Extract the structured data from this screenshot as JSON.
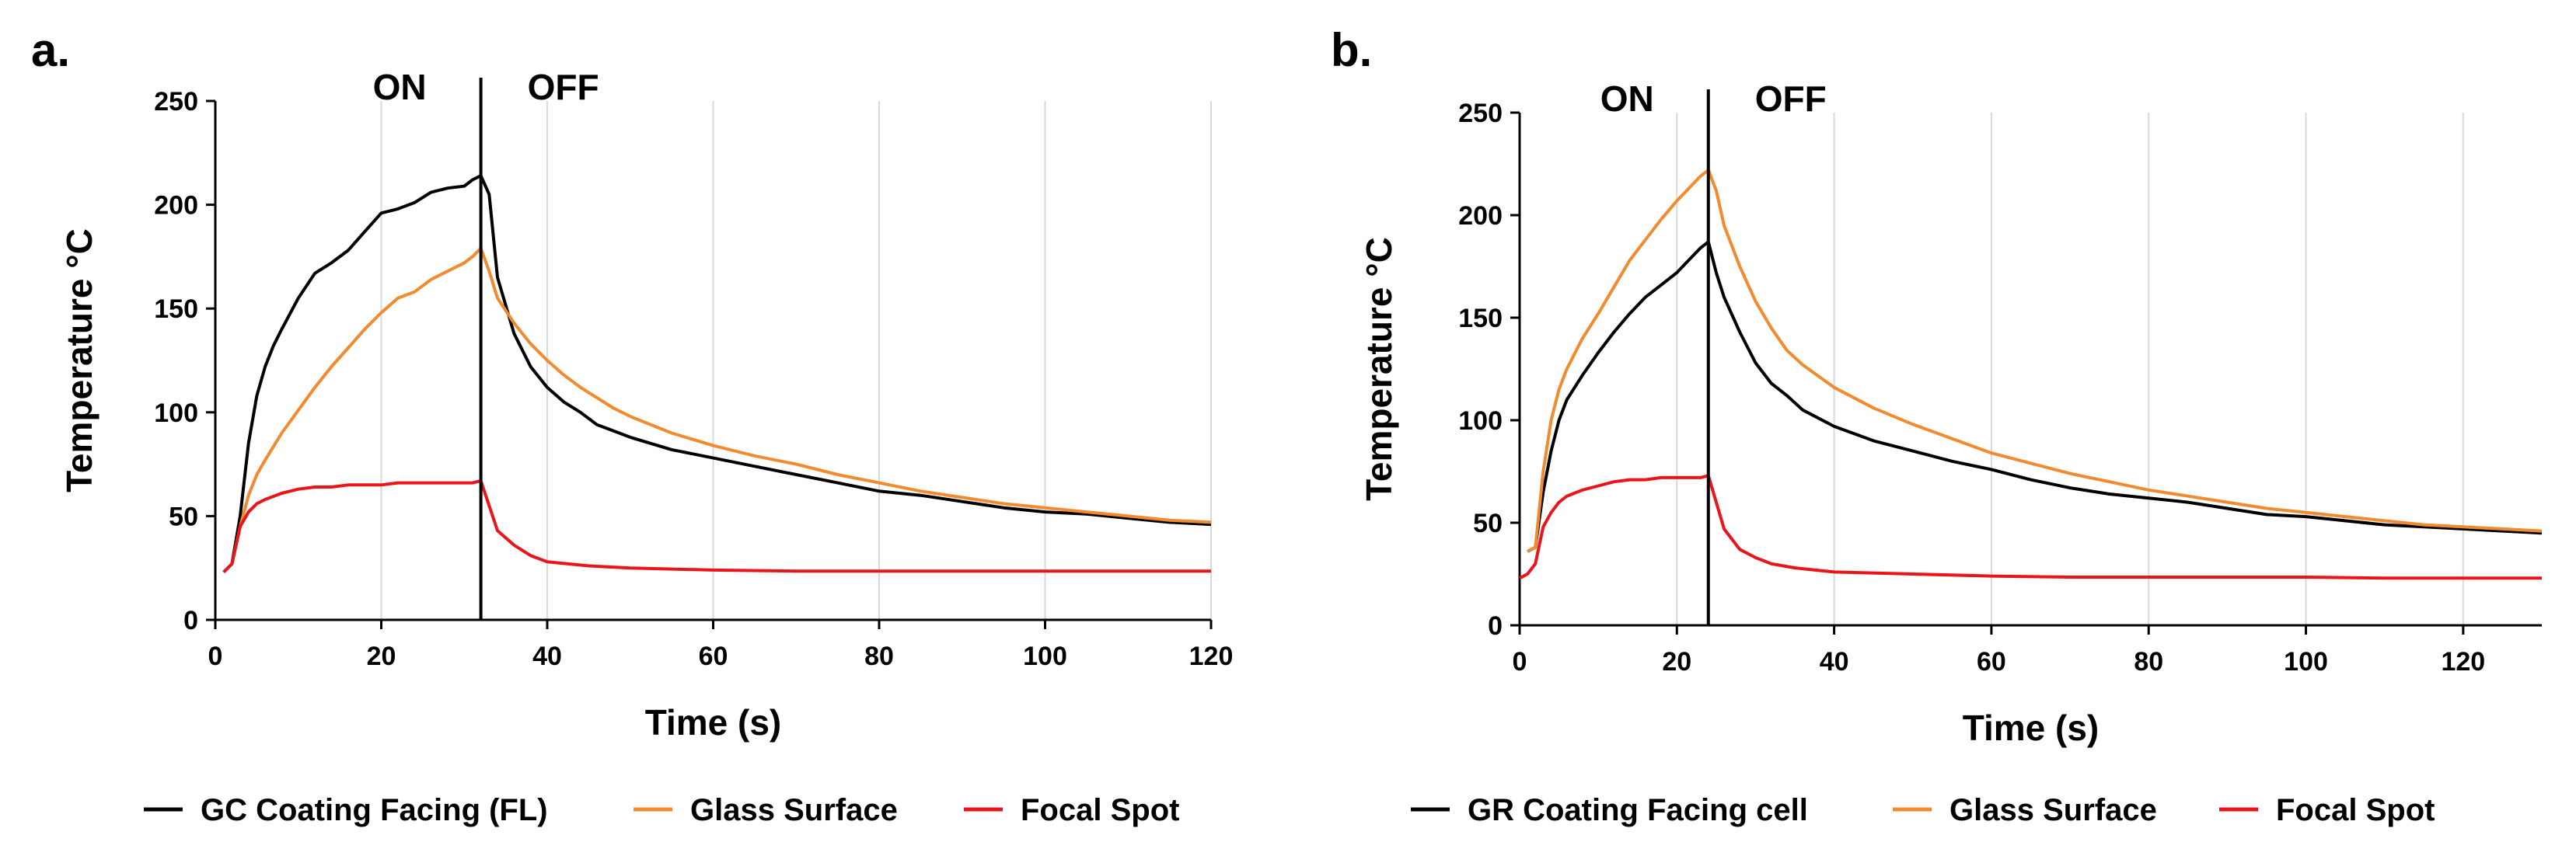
{
  "chart_data": [
    {
      "type": "line",
      "panel_label": "a.",
      "phase_labels": [
        "ON",
        "OFF"
      ],
      "switch_time": 32,
      "xlabel": "Time (s)",
      "ylabel": "Temperature °C",
      "xlim": [
        0,
        120
      ],
      "ylim": [
        0,
        250
      ],
      "xticks": [
        0,
        20,
        40,
        60,
        80,
        100,
        120
      ],
      "yticks": [
        0,
        50,
        100,
        150,
        200,
        250
      ],
      "vertical_gridlines": true,
      "legend_position": "bottom",
      "series": [
        {
          "name": "GC Coating Facing (FL)",
          "color": "#000000",
          "x": [
            1,
            2,
            3,
            4,
            5,
            6,
            7,
            8,
            10,
            12,
            14,
            16,
            18,
            20,
            22,
            24,
            26,
            28,
            30,
            31,
            32,
            33,
            34,
            36,
            38,
            40,
            42,
            44,
            46,
            48,
            50,
            55,
            60,
            65,
            70,
            75,
            80,
            85,
            90,
            95,
            100,
            105,
            110,
            115,
            120
          ],
          "y": [
            23,
            27,
            50,
            85,
            108,
            122,
            132,
            140,
            155,
            167,
            172,
            178,
            187,
            196,
            198,
            201,
            206,
            208,
            209,
            212,
            214,
            205,
            165,
            138,
            122,
            112,
            105,
            100,
            94,
            91,
            88,
            82,
            78,
            74,
            70,
            66,
            62,
            60,
            57,
            54,
            52,
            51,
            49,
            47,
            46
          ]
        },
        {
          "name": "Glass Surface",
          "color": "#F28A30",
          "x": [
            1,
            2,
            3,
            4,
            5,
            6,
            8,
            10,
            12,
            14,
            16,
            18,
            20,
            22,
            24,
            26,
            28,
            30,
            31,
            32,
            33,
            34,
            36,
            38,
            40,
            42,
            44,
            46,
            48,
            50,
            55,
            60,
            65,
            70,
            75,
            80,
            85,
            90,
            95,
            100,
            105,
            110,
            115,
            120
          ],
          "y": [
            23,
            27,
            45,
            60,
            70,
            77,
            90,
            101,
            112,
            122,
            131,
            140,
            148,
            155,
            158,
            164,
            168,
            172,
            175,
            179,
            168,
            155,
            143,
            133,
            125,
            118,
            112,
            107,
            102,
            98,
            90,
            84,
            79,
            75,
            70,
            66,
            62,
            59,
            56,
            54,
            52,
            50,
            48,
            47
          ]
        },
        {
          "name": "Focal Spot",
          "color": "#E8161B",
          "x": [
            1,
            2,
            3,
            4,
            5,
            6,
            8,
            10,
            12,
            14,
            16,
            18,
            20,
            22,
            24,
            26,
            28,
            30,
            31,
            32,
            33,
            34,
            36,
            38,
            40,
            45,
            50,
            60,
            70,
            80,
            90,
            100,
            110,
            120
          ],
          "y": [
            23,
            27,
            45,
            52,
            56,
            58,
            61,
            63,
            64,
            64,
            65,
            65,
            65,
            66,
            66,
            66,
            66,
            66,
            66,
            67,
            55,
            43,
            36,
            31,
            28,
            26,
            25,
            24,
            23.5,
            23.5,
            23.5,
            23.5,
            23.5,
            23.5
          ]
        }
      ]
    },
    {
      "type": "line",
      "panel_label": "b.",
      "phase_labels": [
        "ON",
        "OFF"
      ],
      "switch_time": 24,
      "xlabel": "Time (s)",
      "ylabel": "Temperature °C",
      "xlim": [
        0,
        130
      ],
      "ylim": [
        0,
        250
      ],
      "xticks": [
        0,
        20,
        40,
        60,
        80,
        100,
        120
      ],
      "yticks": [
        0,
        50,
        100,
        150,
        200,
        250
      ],
      "vertical_gridlines": true,
      "legend_position": "bottom",
      "series": [
        {
          "name": "GR Coating Facing cell",
          "color": "#000000",
          "x": [
            1,
            2,
            3,
            4,
            5,
            6,
            8,
            10,
            12,
            14,
            16,
            18,
            20,
            22,
            23,
            24,
            25,
            26,
            28,
            30,
            32,
            34,
            36,
            40,
            45,
            50,
            55,
            60,
            65,
            70,
            75,
            80,
            85,
            90,
            95,
            100,
            105,
            110,
            115,
            120,
            125,
            130
          ],
          "y": [
            36,
            38,
            65,
            85,
            100,
            110,
            122,
            133,
            143,
            152,
            160,
            166,
            172,
            180,
            184,
            187,
            172,
            160,
            143,
            128,
            118,
            112,
            105,
            97,
            90,
            85,
            80,
            76,
            71,
            67,
            64,
            62,
            60,
            57,
            54,
            53,
            51,
            49,
            48,
            47,
            46,
            45
          ]
        },
        {
          "name": "Glass Surface",
          "color": "#F28A30",
          "x": [
            1,
            2,
            3,
            4,
            5,
            6,
            8,
            10,
            12,
            14,
            16,
            18,
            20,
            22,
            23,
            24,
            25,
            26,
            28,
            30,
            32,
            34,
            36,
            40,
            45,
            50,
            55,
            60,
            65,
            70,
            75,
            80,
            85,
            90,
            95,
            100,
            105,
            110,
            115,
            120,
            125,
            130
          ],
          "y": [
            36,
            38,
            75,
            100,
            115,
            125,
            140,
            152,
            165,
            178,
            188,
            198,
            207,
            215,
            219,
            222,
            212,
            195,
            175,
            158,
            145,
            134,
            127,
            116,
            106,
            98,
            91,
            84,
            79,
            74,
            70,
            66,
            63,
            60,
            57,
            55,
            53,
            51,
            49,
            48,
            47,
            46
          ]
        },
        {
          "name": "Focal Spot",
          "color": "#E8161B",
          "x": [
            0,
            1,
            2,
            3,
            4,
            5,
            6,
            8,
            10,
            12,
            14,
            16,
            18,
            20,
            22,
            23,
            24,
            25,
            26,
            27,
            28,
            30,
            32,
            35,
            40,
            50,
            60,
            70,
            80,
            90,
            100,
            110,
            120,
            130
          ],
          "y": [
            23,
            25,
            30,
            48,
            55,
            60,
            63,
            66,
            68,
            70,
            71,
            71,
            72,
            72,
            72,
            72,
            73,
            60,
            47,
            42,
            37,
            33,
            30,
            28,
            26,
            25,
            24,
            23.5,
            23.5,
            23.5,
            23.5,
            23,
            23,
            23
          ]
        }
      ]
    }
  ]
}
